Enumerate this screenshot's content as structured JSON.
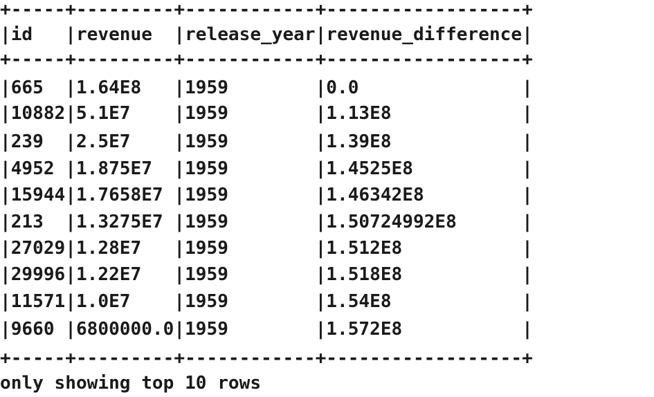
{
  "table": {
    "columns": [
      "id",
      "revenue",
      "release_year",
      "revenue_difference"
    ],
    "rows": [
      [
        "665",
        "1.64E8",
        "1959",
        "0.0"
      ],
      [
        "10882",
        "5.1E7",
        "1959",
        "1.13E8"
      ],
      [
        "239",
        "2.5E7",
        "1959",
        "1.39E8"
      ],
      [
        "4952",
        "1.875E7",
        "1959",
        "1.4525E8"
      ],
      [
        "15944",
        "1.7658E7",
        "1959",
        "1.46342E8"
      ],
      [
        "213",
        "1.3275E7",
        "1959",
        "1.50724992E8"
      ],
      [
        "27029",
        "1.28E7",
        "1959",
        "1.512E8"
      ],
      [
        "29996",
        "1.22E7",
        "1959",
        "1.518E8"
      ],
      [
        "11571",
        "1.0E7",
        "1959",
        "1.54E8"
      ],
      [
        "9660",
        "6800000.0",
        "1959",
        "1.572E8"
      ]
    ]
  },
  "footer": {
    "text": "only showing top 10 rows"
  },
  "lines": {
    "border_top": "+-----+---------+------------+------------------+",
    "header": "|id   |revenue  |release_year|revenue_difference|",
    "border_mid": "+-----+---------+------------+------------------+",
    "row_0": "|665  |1.64E8   |1959        |0.0               |",
    "row_1": "|10882|5.1E7    |1959        |1.13E8            |",
    "row_2": "|239  |2.5E7    |1959        |1.39E8            |",
    "row_3": "|4952 |1.875E7  |1959        |1.4525E8          |",
    "row_4": "|15944|1.7658E7 |1959        |1.46342E8         |",
    "row_5": "|213  |1.3275E7 |1959        |1.50724992E8      |",
    "row_6": "|27029|1.28E7   |1959        |1.512E8           |",
    "row_7": "|29996|1.22E7   |1959        |1.518E8           |",
    "row_8": "|11571|1.0E7    |1959        |1.54E8            |",
    "row_9": "|9660 |6800000.0|1959        |1.572E8           |",
    "border_bottom": "+-----+---------+------------+------------------+"
  }
}
